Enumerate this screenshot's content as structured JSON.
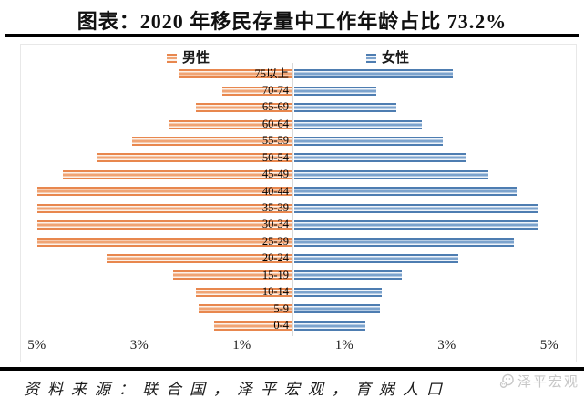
{
  "title": "图表：2020 年移民存量中工作年龄占比 73.2%",
  "legend": {
    "male": "男性",
    "female": "女性"
  },
  "colors": {
    "male-dark": "#E8874E",
    "male-mid": "#F0A474",
    "male-gap": "#FCF2EA",
    "female-dark": "#4E7DB1",
    "female-mid": "#7CA3CD",
    "female-gap": "#EFF4FA"
  },
  "chart_data": {
    "type": "bar",
    "variant": "population-pyramid",
    "title": "2020 年移民存量中工作年龄占比 73.2%",
    "categories": [
      "75以上",
      "70-74",
      "65-69",
      "60-64",
      "55-59",
      "50-54",
      "45-49",
      "40-44",
      "35-39",
      "30-34",
      "25-29",
      "20-24",
      "15-19",
      "10-14",
      "5-9",
      "0-4"
    ],
    "series": [
      {
        "name": "男性",
        "side": "left",
        "values": [
          2.2,
          1.35,
          1.85,
          2.4,
          3.1,
          3.8,
          4.45,
          4.95,
          4.95,
          4.95,
          4.95,
          3.6,
          2.3,
          1.85,
          1.8,
          1.5
        ]
      },
      {
        "name": "女性",
        "side": "right",
        "values": [
          3.1,
          1.6,
          2.0,
          2.5,
          2.9,
          3.35,
          3.8,
          4.35,
          4.75,
          4.75,
          4.3,
          3.2,
          2.1,
          1.72,
          1.68,
          1.4
        ]
      }
    ],
    "unit": "%",
    "x_axis": {
      "ticks": [
        {
          "label": "5%",
          "value": -5
        },
        {
          "label": "3%",
          "value": -3
        },
        {
          "label": "1%",
          "value": -1
        },
        {
          "label": "1%",
          "value": 1
        },
        {
          "label": "3%",
          "value": 3
        },
        {
          "label": "5%",
          "value": 5
        }
      ],
      "range": [
        -5.5,
        5.5
      ]
    },
    "legend_position": "top",
    "grid": false
  },
  "source": "资料来源：联合国，泽平宏观，育娲人口",
  "watermark": "泽平宏观"
}
